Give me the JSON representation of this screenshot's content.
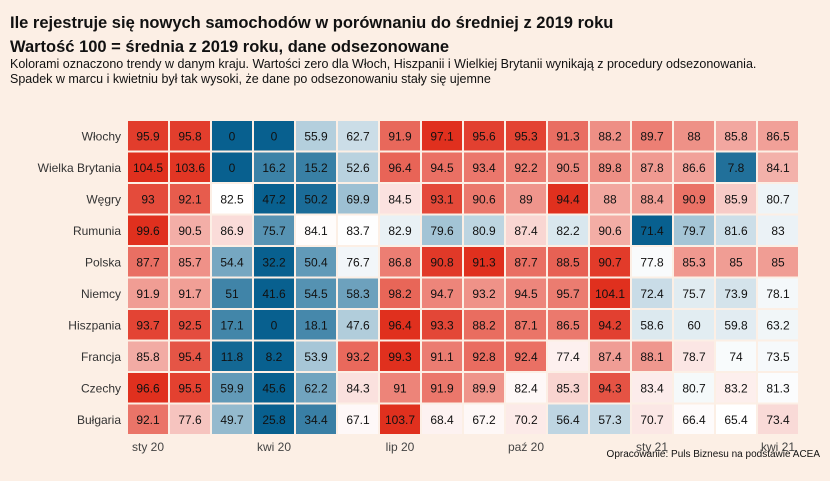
{
  "header": {
    "title_line1": "Ile rejestruje się nowych samochodów w porównaniu do średniej z 2019 roku",
    "title_line2": "Wartość 100 = średnia z 2019 roku, dane odsezonowane",
    "subtitle_line1": "Kolorami oznaczono trendy w danym kraju. Wartości zero dla Włoch, Hiszpanii i Wielkiej Brytanii wynikają z procedury odsezonowania.",
    "subtitle_line2": "Spadek w marcu i kwietniu był tak wysoki, że dane po odsezonowaniu stały się ujemne"
  },
  "source": "Opracowanie: Puls Biznesu na podstawie ACEA",
  "chart_data": {
    "type": "heatmap",
    "title": "Ile rejestruje się nowych samochodów w porównaniu do średniej z 2019 roku",
    "x_tick_labels": [
      "sty 20",
      "",
      "",
      "kwi 20",
      "",
      "",
      "lip 20",
      "",
      "",
      "paź 20",
      "",
      "",
      "sty 21",
      "",
      "",
      "kwi 21"
    ],
    "rows": [
      "Włochy",
      "Wielka Brytania",
      "Węgry",
      "Rumunia",
      "Polska",
      "Niemcy",
      "Hiszpania",
      "Francja",
      "Czechy",
      "Bułgaria"
    ],
    "values": [
      [
        95.9,
        95.8,
        0,
        0,
        55.9,
        62.7,
        91.9,
        97.1,
        95.6,
        95.3,
        91.3,
        88.2,
        89.7,
        88,
        85.8,
        86.5
      ],
      [
        104.5,
        103.6,
        0,
        16.2,
        15.2,
        52.6,
        96.4,
        94.5,
        93.4,
        92.2,
        90.5,
        89.8,
        87.8,
        86.6,
        7.8,
        84.1
      ],
      [
        93,
        92.1,
        82.5,
        47.2,
        50.2,
        69.9,
        84.5,
        93.1,
        90.6,
        89,
        94.4,
        88,
        88.4,
        90.9,
        85.9,
        80.7
      ],
      [
        99.6,
        90.5,
        86.9,
        75.7,
        84.1,
        83.7,
        82.9,
        79.6,
        80.9,
        87.4,
        82.2,
        90.6,
        71.4,
        79.7,
        81.6,
        83
      ],
      [
        87.7,
        85.7,
        54.4,
        32.2,
        50.4,
        76.7,
        86.8,
        90.8,
        91.3,
        87.7,
        88.5,
        90.7,
        77.8,
        85.3,
        85,
        85
      ],
      [
        91.9,
        91.7,
        51,
        41.6,
        54.5,
        58.3,
        98.2,
        94.7,
        93.2,
        94.5,
        95.7,
        104.1,
        72.4,
        75.7,
        73.9,
        78.1
      ],
      [
        93.7,
        92.5,
        17.1,
        0,
        18.1,
        47.6,
        96.4,
        93.3,
        88.2,
        87.1,
        86.5,
        94.2,
        58.6,
        60,
        59.8,
        63.2
      ],
      [
        85.8,
        95.4,
        11.8,
        8.2,
        53.9,
        93.2,
        99.3,
        91.1,
        92.8,
        92.4,
        77.4,
        87.4,
        88.1,
        78.7,
        74,
        73.5
      ],
      [
        96.6,
        95.5,
        59.9,
        45.6,
        62.2,
        84.3,
        91,
        91.9,
        89.9,
        82.4,
        85.3,
        94.3,
        83.4,
        80.7,
        83.2,
        81.3
      ],
      [
        92.1,
        77.6,
        49.7,
        25.8,
        34.4,
        67.1,
        103.7,
        68.4,
        67.2,
        70.2,
        56.4,
        57.3,
        70.7,
        66.4,
        65.4,
        73.4
      ]
    ],
    "colors": {
      "background": "#fcefe5",
      "low": "#08608f",
      "mid": "#ffffff",
      "high": "#e0301e"
    }
  }
}
